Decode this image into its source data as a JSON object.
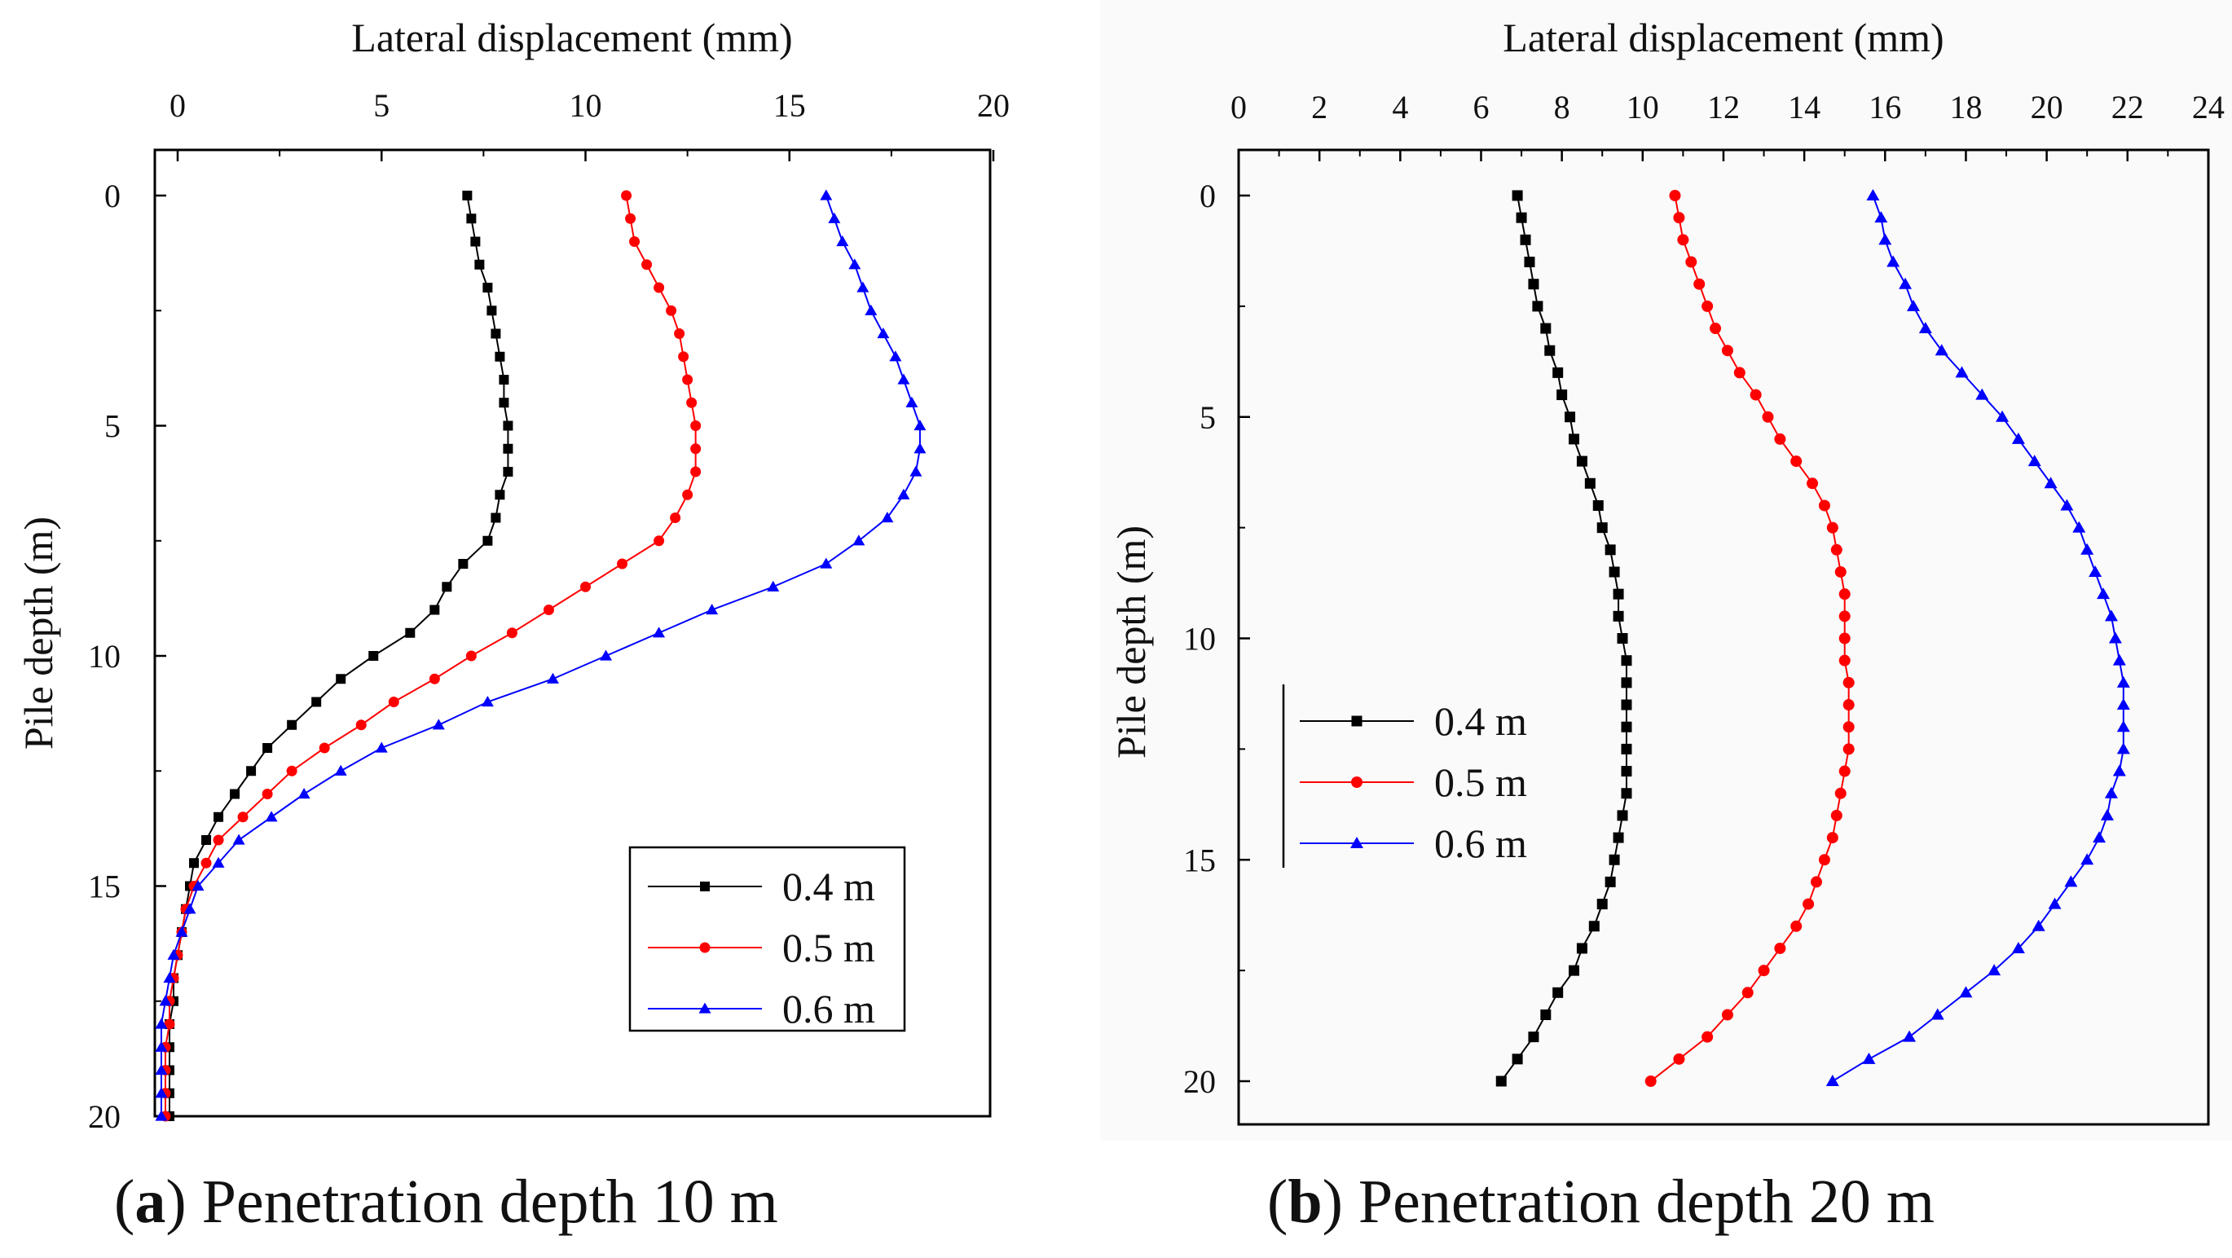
{
  "chart_data": [
    {
      "type": "line",
      "panel_label": "a",
      "caption": "Penetration depth 10 m",
      "xlabel": "Lateral displacement (mm)",
      "ylabel": "Pile depth (m)",
      "xlim": [
        -1,
        20
      ],
      "ylim": [
        21,
        -1
      ],
      "xticks": [
        0,
        5,
        10,
        15,
        20
      ],
      "yticks": [
        0,
        5,
        10,
        15,
        20
      ],
      "xtick_labels": [
        "0",
        "5",
        "10",
        "15",
        "20"
      ],
      "ytick_labels": [
        "0",
        "5",
        "10",
        "15",
        "20"
      ],
      "legend_position": "bottom-right",
      "depth": [
        0,
        0.5,
        1,
        1.5,
        2,
        2.5,
        3,
        3.5,
        4,
        4.5,
        5,
        5.5,
        6,
        6.5,
        7,
        7.5,
        8,
        8.5,
        9,
        9.5,
        10,
        10.5,
        11,
        11.5,
        12,
        12.5,
        13,
        13.5,
        14,
        14.5,
        15,
        15.5,
        16,
        16.5,
        17,
        17.5,
        18,
        18.5,
        19,
        19.5,
        20
      ],
      "series": [
        {
          "name": "0.4 m",
          "color": "#000000",
          "marker": "square",
          "values": [
            7.1,
            7.2,
            7.3,
            7.4,
            7.6,
            7.7,
            7.8,
            7.9,
            8.0,
            8.0,
            8.1,
            8.1,
            8.1,
            7.9,
            7.8,
            7.6,
            7.0,
            6.6,
            6.3,
            5.7,
            4.8,
            4.0,
            3.4,
            2.8,
            2.2,
            1.8,
            1.4,
            1.0,
            0.7,
            0.4,
            0.3,
            0.2,
            0.1,
            0.0,
            -0.1,
            -0.1,
            -0.2,
            -0.2,
            -0.2,
            -0.2,
            -0.2
          ]
        },
        {
          "name": "0.5 m",
          "color": "#ff0000",
          "marker": "circle",
          "values": [
            11.0,
            11.1,
            11.2,
            11.5,
            11.8,
            12.1,
            12.3,
            12.4,
            12.5,
            12.6,
            12.7,
            12.7,
            12.7,
            12.5,
            12.2,
            11.8,
            10.9,
            10.0,
            9.1,
            8.2,
            7.2,
            6.3,
            5.3,
            4.5,
            3.6,
            2.8,
            2.2,
            1.6,
            1.0,
            0.7,
            0.4,
            0.2,
            0.1,
            0.0,
            -0.1,
            -0.2,
            -0.2,
            -0.3,
            -0.3,
            -0.3,
            -0.3
          ]
        },
        {
          "name": "0.6 m",
          "color": "#0000ff",
          "marker": "triangle",
          "values": [
            15.9,
            16.1,
            16.3,
            16.6,
            16.8,
            17.0,
            17.3,
            17.6,
            17.8,
            18.0,
            18.2,
            18.2,
            18.1,
            17.8,
            17.4,
            16.7,
            15.9,
            14.6,
            13.1,
            11.8,
            10.5,
            9.2,
            7.6,
            6.4,
            5.0,
            4.0,
            3.1,
            2.3,
            1.5,
            1.0,
            0.5,
            0.3,
            0.1,
            -0.1,
            -0.2,
            -0.3,
            -0.4,
            -0.4,
            -0.4,
            -0.4,
            -0.4
          ]
        }
      ]
    },
    {
      "type": "line",
      "panel_label": "b",
      "caption": "Penetration depth 20 m",
      "xlabel": "Lateral displacement (mm)",
      "ylabel": "Pile depth (m)",
      "xlim": [
        0,
        24
      ],
      "ylim": [
        21,
        -1
      ],
      "xticks": [
        0,
        2,
        4,
        6,
        8,
        10,
        12,
        14,
        16,
        18,
        20,
        22,
        24
      ],
      "yticks": [
        0,
        5,
        10,
        15,
        20
      ],
      "xtick_labels": [
        "0",
        "2",
        "4",
        "6",
        "8",
        "10",
        "12",
        "14",
        "16",
        "18",
        "20",
        "22",
        "24"
      ],
      "ytick_labels": [
        "0",
        "5",
        "10",
        "15",
        "20"
      ],
      "legend_position": "middle-left",
      "depth": [
        0,
        0.5,
        1,
        1.5,
        2,
        2.5,
        3,
        3.5,
        4,
        4.5,
        5,
        5.5,
        6,
        6.5,
        7,
        7.5,
        8,
        8.5,
        9,
        9.5,
        10,
        10.5,
        11,
        11.5,
        12,
        12.5,
        13,
        13.5,
        14,
        14.5,
        15,
        15.5,
        16,
        16.5,
        17,
        17.5,
        18,
        18.5,
        19,
        19.5,
        20
      ],
      "series": [
        {
          "name": "0.4 m",
          "color": "#000000",
          "marker": "square",
          "values": [
            6.9,
            7.0,
            7.1,
            7.2,
            7.3,
            7.4,
            7.6,
            7.7,
            7.9,
            8.0,
            8.2,
            8.3,
            8.5,
            8.7,
            8.9,
            9.0,
            9.2,
            9.3,
            9.4,
            9.4,
            9.5,
            9.6,
            9.6,
            9.6,
            9.6,
            9.6,
            9.6,
            9.6,
            9.5,
            9.4,
            9.3,
            9.2,
            9.0,
            8.8,
            8.5,
            8.3,
            7.9,
            7.6,
            7.3,
            6.9,
            6.5
          ]
        },
        {
          "name": "0.5 m",
          "color": "#ff0000",
          "marker": "circle",
          "values": [
            10.8,
            10.9,
            11.0,
            11.2,
            11.4,
            11.6,
            11.8,
            12.1,
            12.4,
            12.8,
            13.1,
            13.4,
            13.8,
            14.2,
            14.5,
            14.7,
            14.8,
            14.9,
            15.0,
            15.0,
            15.0,
            15.0,
            15.1,
            15.1,
            15.1,
            15.1,
            15.0,
            14.9,
            14.8,
            14.7,
            14.5,
            14.3,
            14.1,
            13.8,
            13.4,
            13.0,
            12.6,
            12.1,
            11.6,
            10.9,
            10.2
          ]
        },
        {
          "name": "0.6 m",
          "color": "#0000ff",
          "marker": "triangle",
          "values": [
            15.7,
            15.9,
            16.0,
            16.2,
            16.5,
            16.7,
            17.0,
            17.4,
            17.9,
            18.4,
            18.9,
            19.3,
            19.7,
            20.1,
            20.5,
            20.8,
            21.0,
            21.2,
            21.4,
            21.6,
            21.7,
            21.8,
            21.9,
            21.9,
            21.9,
            21.9,
            21.8,
            21.6,
            21.5,
            21.3,
            21.0,
            20.6,
            20.2,
            19.8,
            19.3,
            18.7,
            18.0,
            17.3,
            16.6,
            15.6,
            14.7
          ]
        }
      ]
    }
  ]
}
